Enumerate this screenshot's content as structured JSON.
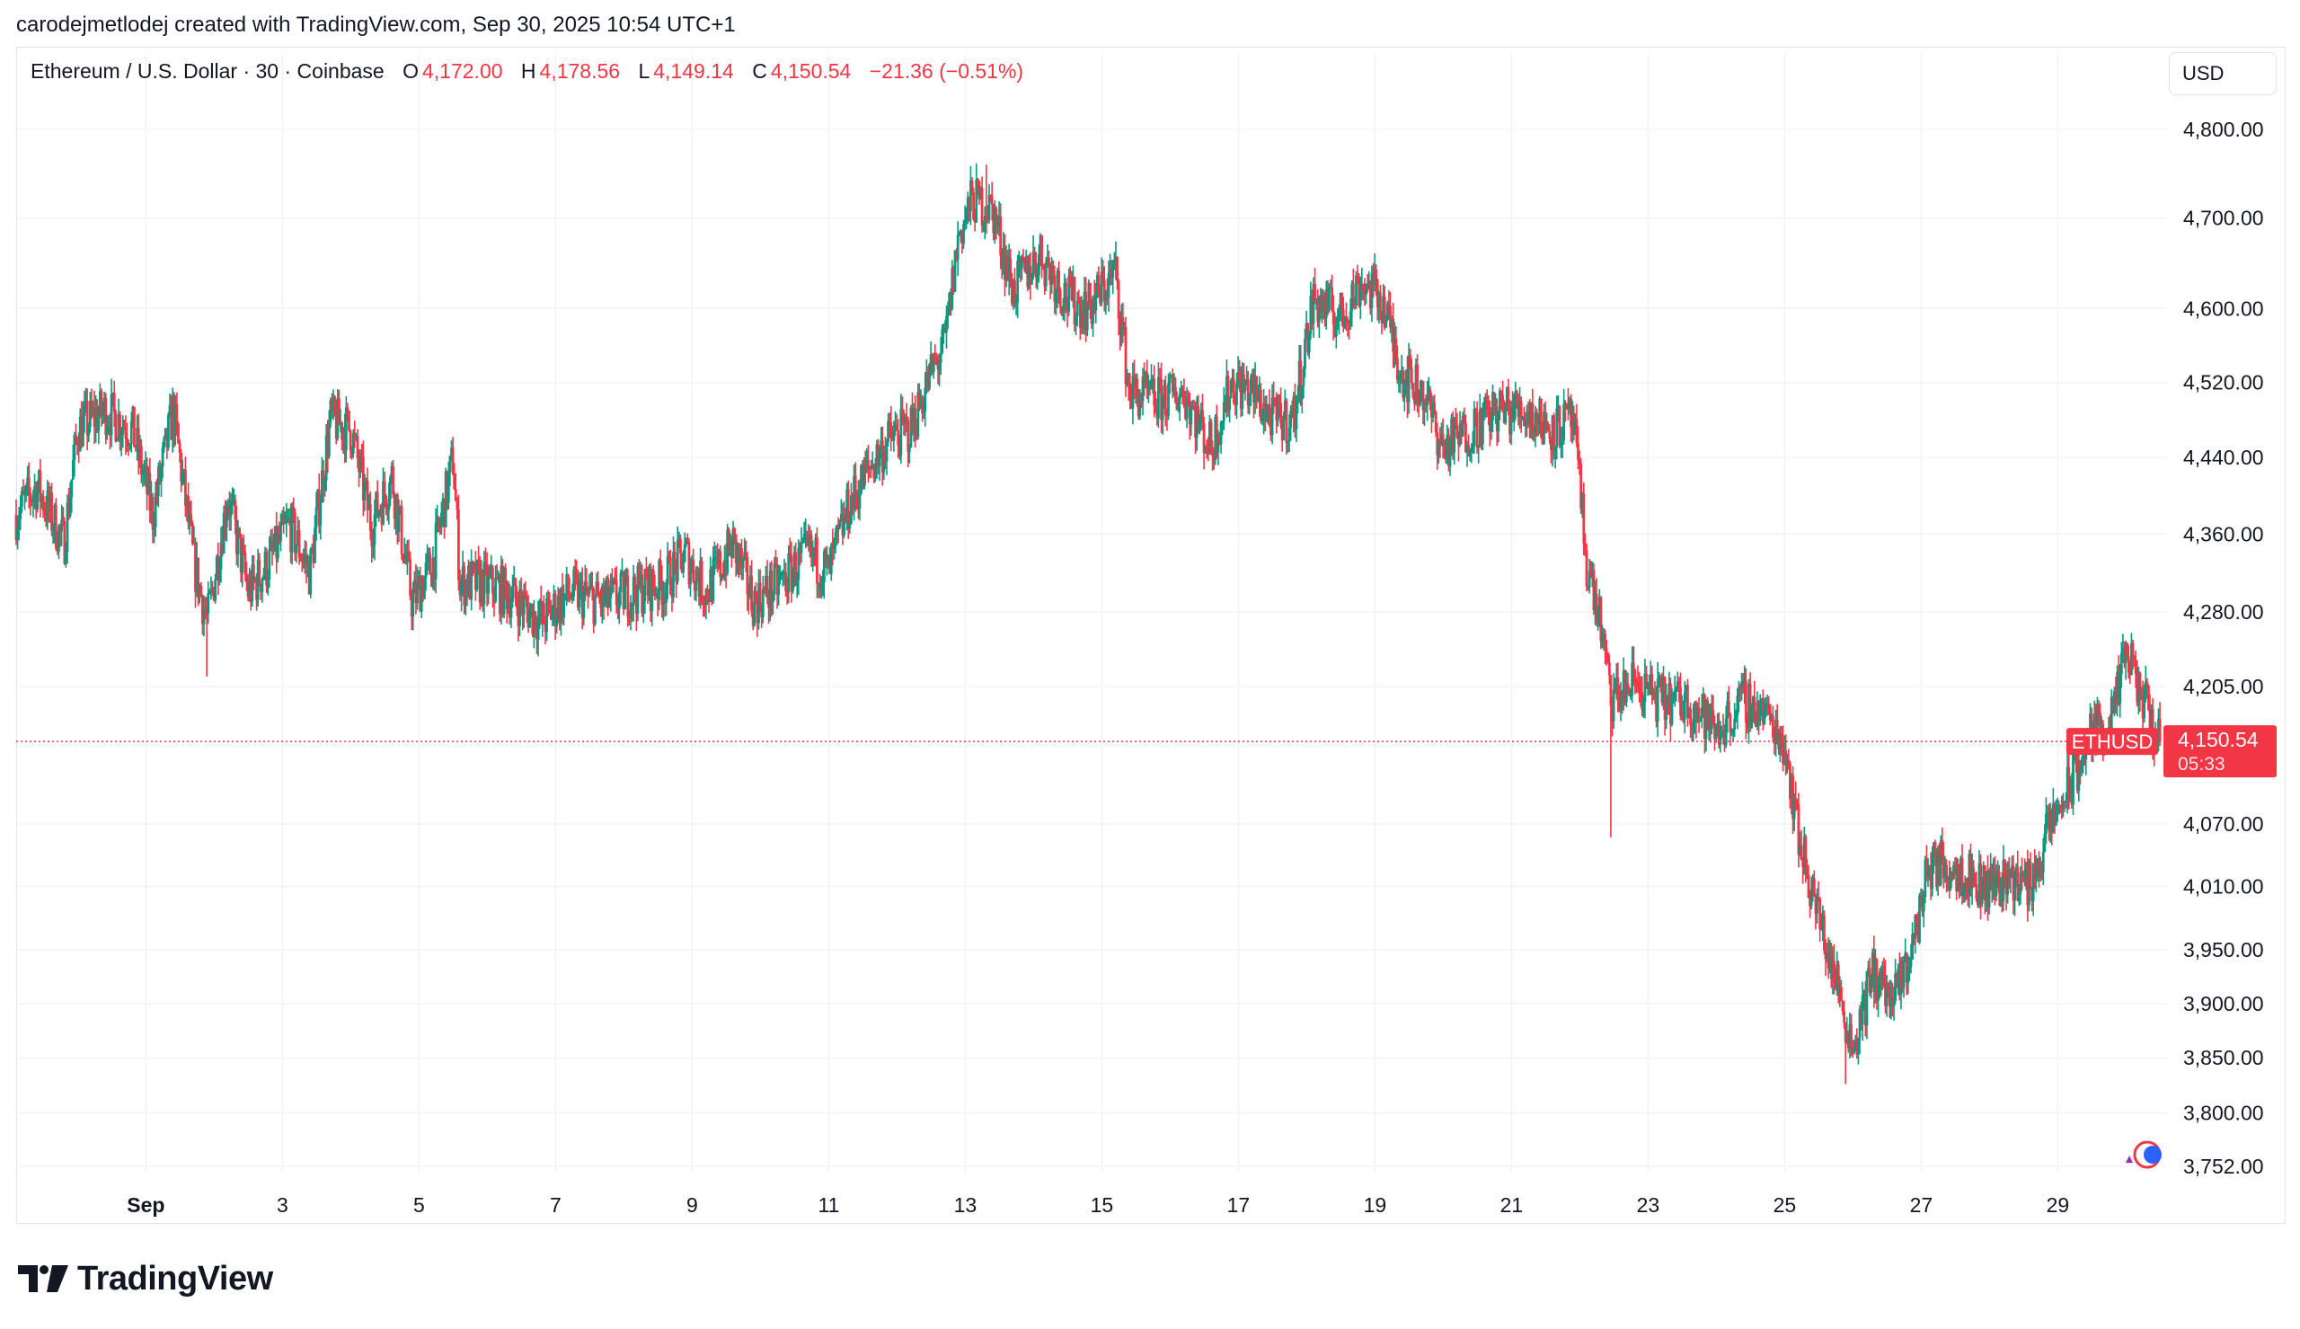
{
  "header": {
    "caption": "carodejmetlodej created with TradingView.com, Sep 30, 2025 10:54 UTC+1"
  },
  "legend": {
    "symbol": "Ethereum / U.S. Dollar · 30 · Coinbase",
    "open_label": "O",
    "open": "4,172.00",
    "high_label": "H",
    "high": "4,178.56",
    "low_label": "L",
    "low": "4,149.14",
    "close_label": "C",
    "close": "4,150.54",
    "change": "−21.36 (−0.51%)"
  },
  "currency_button": "USD",
  "price_tag": {
    "ticker": "ETHUSD",
    "price": "4,150.54",
    "countdown": "05:33"
  },
  "brand": "TradingView",
  "colors": {
    "up": "#089981",
    "down": "#f23645",
    "grid": "#f0f3fa",
    "text": "#131722"
  },
  "chart_data": {
    "type": "candlestick",
    "symbol": "ETHUSD",
    "interval": "30",
    "exchange": "Coinbase",
    "y_axis_ticks": [
      3752,
      3800,
      3850,
      3900,
      3950,
      4010,
      4070,
      4205,
      4280,
      4360,
      4440,
      4520,
      4600,
      4700,
      4800
    ],
    "y_tick_labels": [
      "3,752.00",
      "3,800.00",
      "3,850.00",
      "3,900.00",
      "3,950.00",
      "4,010.00",
      "4,070.00",
      "4,205.00",
      "4,280.00",
      "4,360.00",
      "4,440.00",
      "4,520.00",
      "4,600.00",
      "4,700.00",
      "4,800.00"
    ],
    "x_tick_labels": [
      "Sep",
      "3",
      "5",
      "7",
      "9",
      "11",
      "13",
      "15",
      "17",
      "19",
      "21",
      "23",
      "25",
      "27",
      "29"
    ],
    "x_tick_days": [
      1,
      3,
      5,
      7,
      9,
      11,
      13,
      15,
      17,
      19,
      21,
      23,
      25,
      27,
      29
    ],
    "x_range_days": [
      -0.9,
      30.6
    ],
    "y_scale": "log",
    "last_price": 4150.54,
    "close_path": [
      {
        "day": -0.9,
        "price": 4380
      },
      {
        "day": -0.6,
        "price": 4410
      },
      {
        "day": -0.2,
        "price": 4350
      },
      {
        "day": 0.0,
        "price": 4470
      },
      {
        "day": 0.4,
        "price": 4490
      },
      {
        "day": 0.8,
        "price": 4470
      },
      {
        "day": 1.1,
        "price": 4380
      },
      {
        "day": 1.4,
        "price": 4490
      },
      {
        "day": 1.7,
        "price": 4330
      },
      {
        "day": 1.9,
        "price": 4270
      },
      {
        "day": 2.2,
        "price": 4400
      },
      {
        "day": 2.5,
        "price": 4300
      },
      {
        "day": 2.8,
        "price": 4330
      },
      {
        "day": 3.1,
        "price": 4370
      },
      {
        "day": 3.4,
        "price": 4320
      },
      {
        "day": 3.7,
        "price": 4480
      },
      {
        "day": 4.0,
        "price": 4470
      },
      {
        "day": 4.3,
        "price": 4370
      },
      {
        "day": 4.6,
        "price": 4420
      },
      {
        "day": 4.9,
        "price": 4290
      },
      {
        "day": 5.2,
        "price": 4330
      },
      {
        "day": 5.5,
        "price": 4440
      },
      {
        "day": 5.6,
        "price": 4310
      },
      {
        "day": 5.9,
        "price": 4310
      },
      {
        "day": 6.3,
        "price": 4300
      },
      {
        "day": 6.8,
        "price": 4270
      },
      {
        "day": 7.2,
        "price": 4300
      },
      {
        "day": 7.7,
        "price": 4290
      },
      {
        "day": 8.1,
        "price": 4300
      },
      {
        "day": 8.6,
        "price": 4310
      },
      {
        "day": 8.9,
        "price": 4340
      },
      {
        "day": 9.2,
        "price": 4300
      },
      {
        "day": 9.6,
        "price": 4350
      },
      {
        "day": 9.9,
        "price": 4290
      },
      {
        "day": 10.3,
        "price": 4310
      },
      {
        "day": 10.7,
        "price": 4340
      },
      {
        "day": 11.0,
        "price": 4320
      },
      {
        "day": 11.3,
        "price": 4390
      },
      {
        "day": 11.6,
        "price": 4430
      },
      {
        "day": 11.9,
        "price": 4460
      },
      {
        "day": 12.2,
        "price": 4470
      },
      {
        "day": 12.5,
        "price": 4530
      },
      {
        "day": 12.7,
        "price": 4560
      },
      {
        "day": 12.9,
        "price": 4680
      },
      {
        "day": 13.1,
        "price": 4720
      },
      {
        "day": 13.4,
        "price": 4710
      },
      {
        "day": 13.7,
        "price": 4620
      },
      {
        "day": 14.1,
        "price": 4660
      },
      {
        "day": 14.5,
        "price": 4610
      },
      {
        "day": 14.8,
        "price": 4600
      },
      {
        "day": 15.2,
        "price": 4640
      },
      {
        "day": 15.4,
        "price": 4510
      },
      {
        "day": 15.8,
        "price": 4500
      },
      {
        "day": 16.2,
        "price": 4510
      },
      {
        "day": 16.6,
        "price": 4450
      },
      {
        "day": 16.9,
        "price": 4520
      },
      {
        "day": 17.2,
        "price": 4510
      },
      {
        "day": 17.5,
        "price": 4480
      },
      {
        "day": 17.8,
        "price": 4480
      },
      {
        "day": 18.1,
        "price": 4610
      },
      {
        "day": 18.5,
        "price": 4590
      },
      {
        "day": 18.8,
        "price": 4630
      },
      {
        "day": 19.1,
        "price": 4610
      },
      {
        "day": 19.4,
        "price": 4530
      },
      {
        "day": 19.7,
        "price": 4510
      },
      {
        "day": 20.0,
        "price": 4450
      },
      {
        "day": 20.4,
        "price": 4470
      },
      {
        "day": 20.8,
        "price": 4490
      },
      {
        "day": 21.2,
        "price": 4490
      },
      {
        "day": 21.6,
        "price": 4470
      },
      {
        "day": 21.9,
        "price": 4480
      },
      {
        "day": 22.1,
        "price": 4330
      },
      {
        "day": 22.3,
        "price": 4270
      },
      {
        "day": 22.45,
        "price": 4190
      },
      {
        "day": 22.8,
        "price": 4210
      },
      {
        "day": 23.2,
        "price": 4190
      },
      {
        "day": 23.6,
        "price": 4190
      },
      {
        "day": 24.0,
        "price": 4160
      },
      {
        "day": 24.4,
        "price": 4190
      },
      {
        "day": 24.7,
        "price": 4180
      },
      {
        "day": 25.0,
        "price": 4150
      },
      {
        "day": 25.2,
        "price": 4060
      },
      {
        "day": 25.5,
        "price": 3980
      },
      {
        "day": 25.8,
        "price": 3910
      },
      {
        "day": 26.0,
        "price": 3860
      },
      {
        "day": 26.3,
        "price": 3930
      },
      {
        "day": 26.6,
        "price": 3900
      },
      {
        "day": 26.9,
        "price": 3960
      },
      {
        "day": 27.1,
        "price": 4030
      },
      {
        "day": 27.5,
        "price": 4030
      },
      {
        "day": 27.9,
        "price": 4010
      },
      {
        "day": 28.3,
        "price": 4020
      },
      {
        "day": 28.6,
        "price": 4010
      },
      {
        "day": 28.9,
        "price": 4070
      },
      {
        "day": 29.2,
        "price": 4110
      },
      {
        "day": 29.5,
        "price": 4160
      },
      {
        "day": 29.8,
        "price": 4170
      },
      {
        "day": 30.0,
        "price": 4240
      },
      {
        "day": 30.2,
        "price": 4200
      },
      {
        "day": 30.4,
        "price": 4165
      },
      {
        "day": 30.5,
        "price": 4150.54
      }
    ],
    "wick_extremes": [
      {
        "day": 1.9,
        "low": 4215
      },
      {
        "day": 13.3,
        "high": 4760
      },
      {
        "day": 22.45,
        "low": 4057
      },
      {
        "day": 25.9,
        "low": 3826
      },
      {
        "day": 30.1,
        "high": 4252
      }
    ]
  }
}
